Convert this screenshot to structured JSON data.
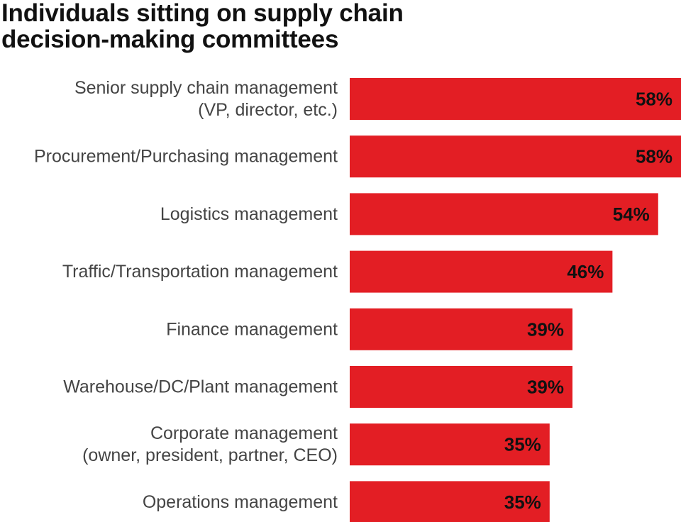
{
  "chart_data": {
    "type": "bar",
    "orientation": "horizontal",
    "title": "Individuals sitting on supply chain decision-making committees",
    "categories": [
      [
        "Senior supply chain management",
        "(VP, director, etc.)"
      ],
      [
        "Procurement/Purchasing management"
      ],
      [
        "Logistics management"
      ],
      [
        "Traffic/Transportation management"
      ],
      [
        "Finance management"
      ],
      [
        "Warehouse/DC/Plant management"
      ],
      [
        "Corporate management",
        "(owner, president, partner, CEO)"
      ],
      [
        "Operations management"
      ]
    ],
    "values": [
      58,
      58,
      54,
      46,
      39,
      39,
      35,
      35
    ],
    "value_labels": [
      "58%",
      "58%",
      "54%",
      "46%",
      "39%",
      "39%",
      "35%",
      "35%"
    ],
    "xlim": [
      0,
      58
    ],
    "grid": false,
    "bar_color": "#e31e24"
  }
}
